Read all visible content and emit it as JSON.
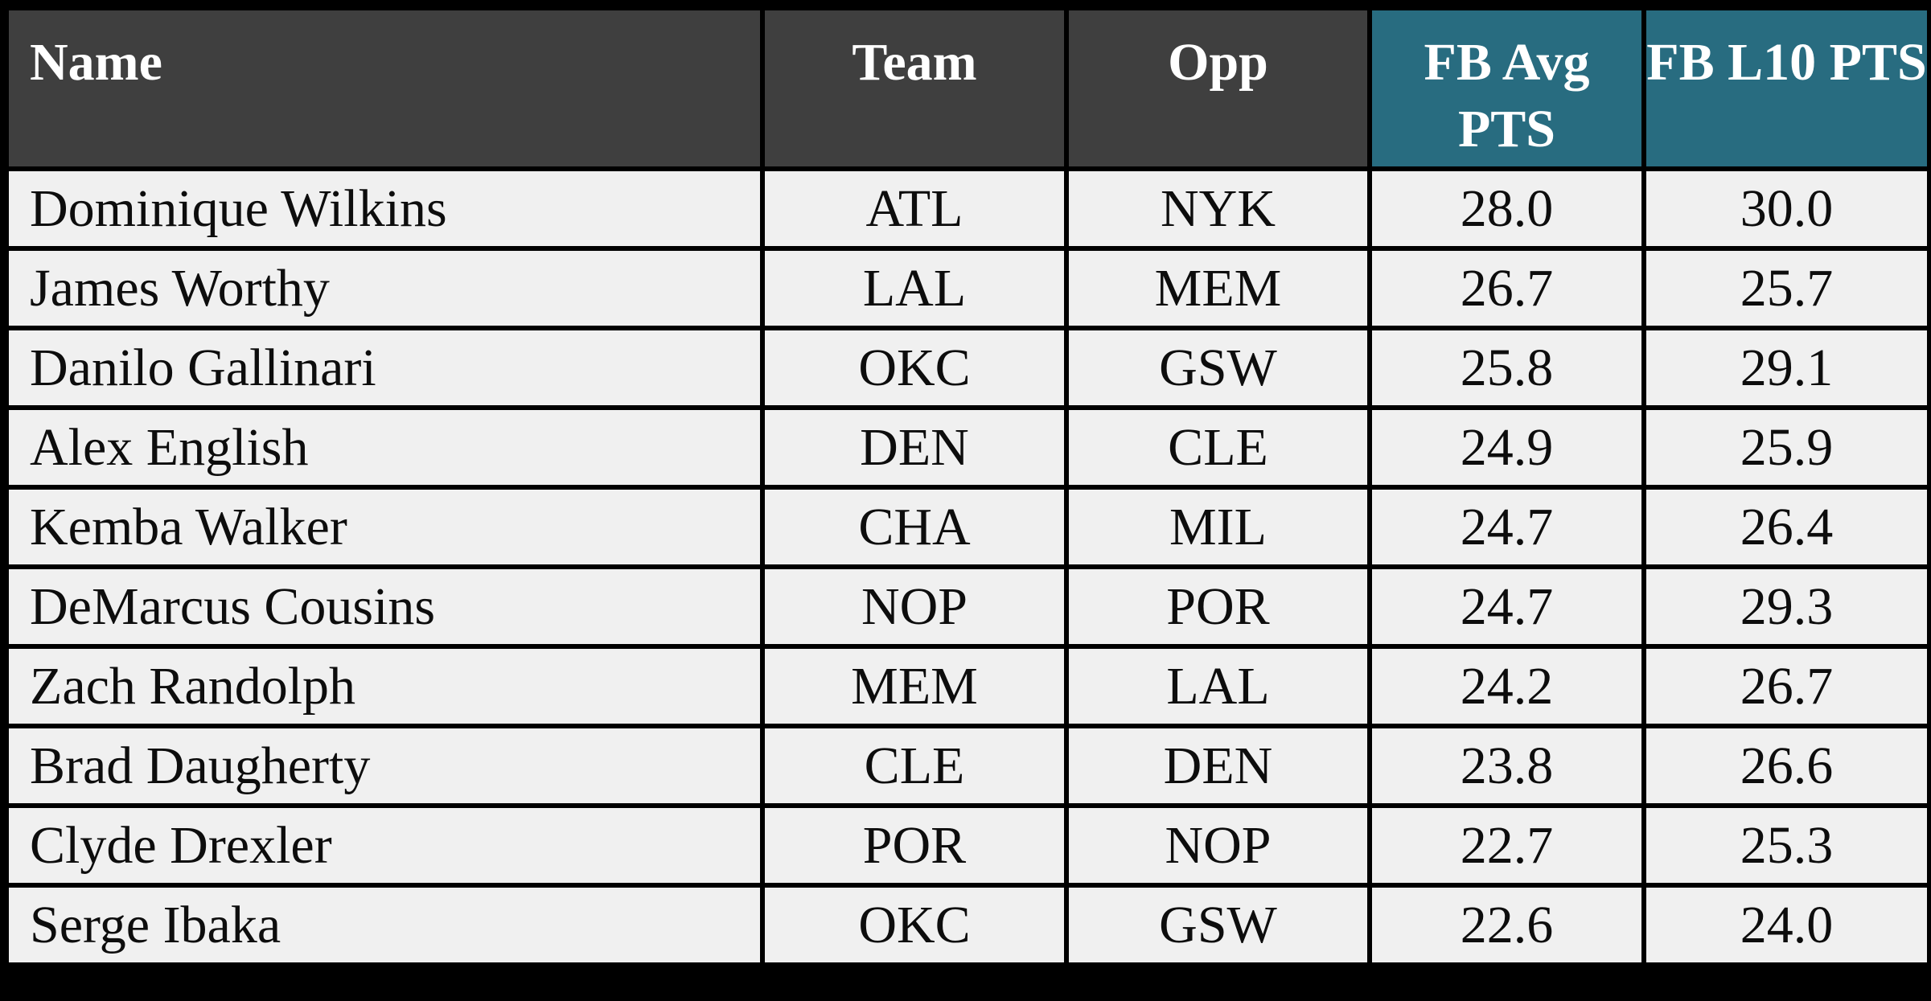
{
  "colors": {
    "header-gray": "#3f3f3f",
    "header-teal": "#286c80",
    "row-bg": "#f0f0f0",
    "light-green": "#c6e0ba",
    "dark-green": "#6fac4b",
    "yellow": "#fdd865"
  },
  "table": {
    "headers": {
      "name": "Name",
      "team": "Team",
      "opp": "Opp",
      "fb_avg": "FB Avg PTS",
      "fb_l10": "FB L10 PTS"
    },
    "rows": [
      {
        "name": "Dominique Wilkins",
        "team": "ATL",
        "opp": "NYK",
        "fb_avg": "28.0",
        "fb_l10": "30.0",
        "fb_avg_fill": "light-green",
        "fb_l10_fill": "dark-green"
      },
      {
        "name": "James Worthy",
        "team": "LAL",
        "opp": "MEM",
        "fb_avg": "26.7",
        "fb_l10": "25.7",
        "fb_avg_fill": "light-green",
        "fb_l10_fill": "light-green"
      },
      {
        "name": "Danilo Gallinari",
        "team": "OKC",
        "opp": "GSW",
        "fb_avg": "25.8",
        "fb_l10": "29.1",
        "fb_avg_fill": "light-green",
        "fb_l10_fill": "light-green"
      },
      {
        "name": "Alex English",
        "team": "DEN",
        "opp": "CLE",
        "fb_avg": "24.9",
        "fb_l10": "25.9",
        "fb_avg_fill": "light-green",
        "fb_l10_fill": "light-green"
      },
      {
        "name": "Kemba Walker",
        "team": "CHA",
        "opp": "MIL",
        "fb_avg": "24.7",
        "fb_l10": "26.4",
        "fb_avg_fill": "light-green",
        "fb_l10_fill": "light-green"
      },
      {
        "name": "DeMarcus Cousins",
        "team": "NOP",
        "opp": "POR",
        "fb_avg": "24.7",
        "fb_l10": "29.3",
        "fb_avg_fill": "light-green",
        "fb_l10_fill": "light-green"
      },
      {
        "name": "Zach Randolph",
        "team": "MEM",
        "opp": "LAL",
        "fb_avg": "24.2",
        "fb_l10": "26.7",
        "fb_avg_fill": "light-green",
        "fb_l10_fill": "light-green"
      },
      {
        "name": "Brad Daugherty",
        "team": "CLE",
        "opp": "DEN",
        "fb_avg": "23.8",
        "fb_l10": "26.6",
        "fb_avg_fill": "yellow",
        "fb_l10_fill": "light-green"
      },
      {
        "name": "Clyde Drexler",
        "team": "POR",
        "opp": "NOP",
        "fb_avg": "22.7",
        "fb_l10": "25.3",
        "fb_avg_fill": "yellow",
        "fb_l10_fill": "light-green"
      },
      {
        "name": "Serge Ibaka",
        "team": "OKC",
        "opp": "GSW",
        "fb_avg": "22.6",
        "fb_l10": "24.0",
        "fb_avg_fill": "yellow",
        "fb_l10_fill": "light-green"
      }
    ]
  },
  "chart_data": {
    "type": "table",
    "title": "",
    "columns": [
      "Name",
      "Team",
      "Opp",
      "FB Avg PTS",
      "FB L10 PTS"
    ],
    "rows": [
      [
        "Dominique Wilkins",
        "ATL",
        "NYK",
        28.0,
        30.0
      ],
      [
        "James Worthy",
        "LAL",
        "MEM",
        26.7,
        25.7
      ],
      [
        "Danilo Gallinari",
        "OKC",
        "GSW",
        25.8,
        29.1
      ],
      [
        "Alex English",
        "DEN",
        "CLE",
        24.9,
        25.9
      ],
      [
        "Kemba Walker",
        "CHA",
        "MIL",
        24.7,
        26.4
      ],
      [
        "DeMarcus Cousins",
        "NOP",
        "POR",
        24.7,
        29.3
      ],
      [
        "Zach Randolph",
        "MEM",
        "LAL",
        24.2,
        26.7
      ],
      [
        "Brad Daugherty",
        "CLE",
        "DEN",
        23.8,
        26.6
      ],
      [
        "Clyde Drexler",
        "POR",
        "NOP",
        22.7,
        25.3
      ],
      [
        "Serge Ibaka",
        "OKC",
        "GSW",
        22.6,
        24.0
      ]
    ],
    "cell_highlights": {
      "FB Avg PTS": [
        "light-green",
        "light-green",
        "light-green",
        "light-green",
        "light-green",
        "light-green",
        "light-green",
        "yellow",
        "yellow",
        "yellow"
      ],
      "FB L10 PTS": [
        "dark-green",
        "light-green",
        "light-green",
        "light-green",
        "light-green",
        "light-green",
        "light-green",
        "light-green",
        "light-green",
        "light-green"
      ]
    },
    "legend_position": "none",
    "grid": true
  }
}
